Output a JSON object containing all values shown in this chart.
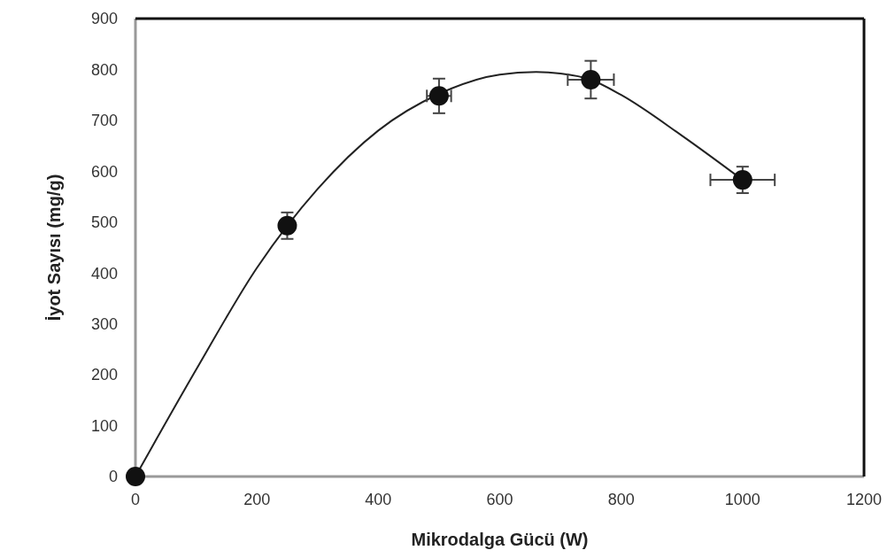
{
  "chart_data": {
    "type": "scatter",
    "xlabel": "Mikrodalga Gücü (W)",
    "ylabel": "İyot Sayısı (mg/g)",
    "xlim": [
      0,
      1200
    ],
    "xticks": [
      0,
      200,
      400,
      600,
      800,
      1000,
      1200
    ],
    "ylim": [
      0,
      900
    ],
    "yticks": [
      0,
      100,
      200,
      300,
      400,
      500,
      600,
      700,
      800,
      900
    ],
    "grid": false,
    "series": [
      {
        "type": "line",
        "color": "#222222",
        "marker": "none",
        "line_style": "solid",
        "x": [
          0,
          100,
          200,
          300,
          400,
          500,
          600,
          660,
          700,
          750,
          800,
          900,
          1000
        ],
        "values": [
          0,
          210,
          410,
          565,
          680,
          752,
          790,
          795,
          792,
          780,
          750,
          670,
          583
        ]
      },
      {
        "color": "#111111",
        "marker": "circle",
        "x": [
          0,
          250,
          500,
          750,
          1000
        ],
        "values": [
          0,
          493,
          748,
          780,
          583
        ],
        "errors": [
          null,
          26,
          34,
          37,
          26
        ],
        "xerrors": [
          null,
          null,
          20,
          38,
          53
        ]
      }
    ]
  }
}
